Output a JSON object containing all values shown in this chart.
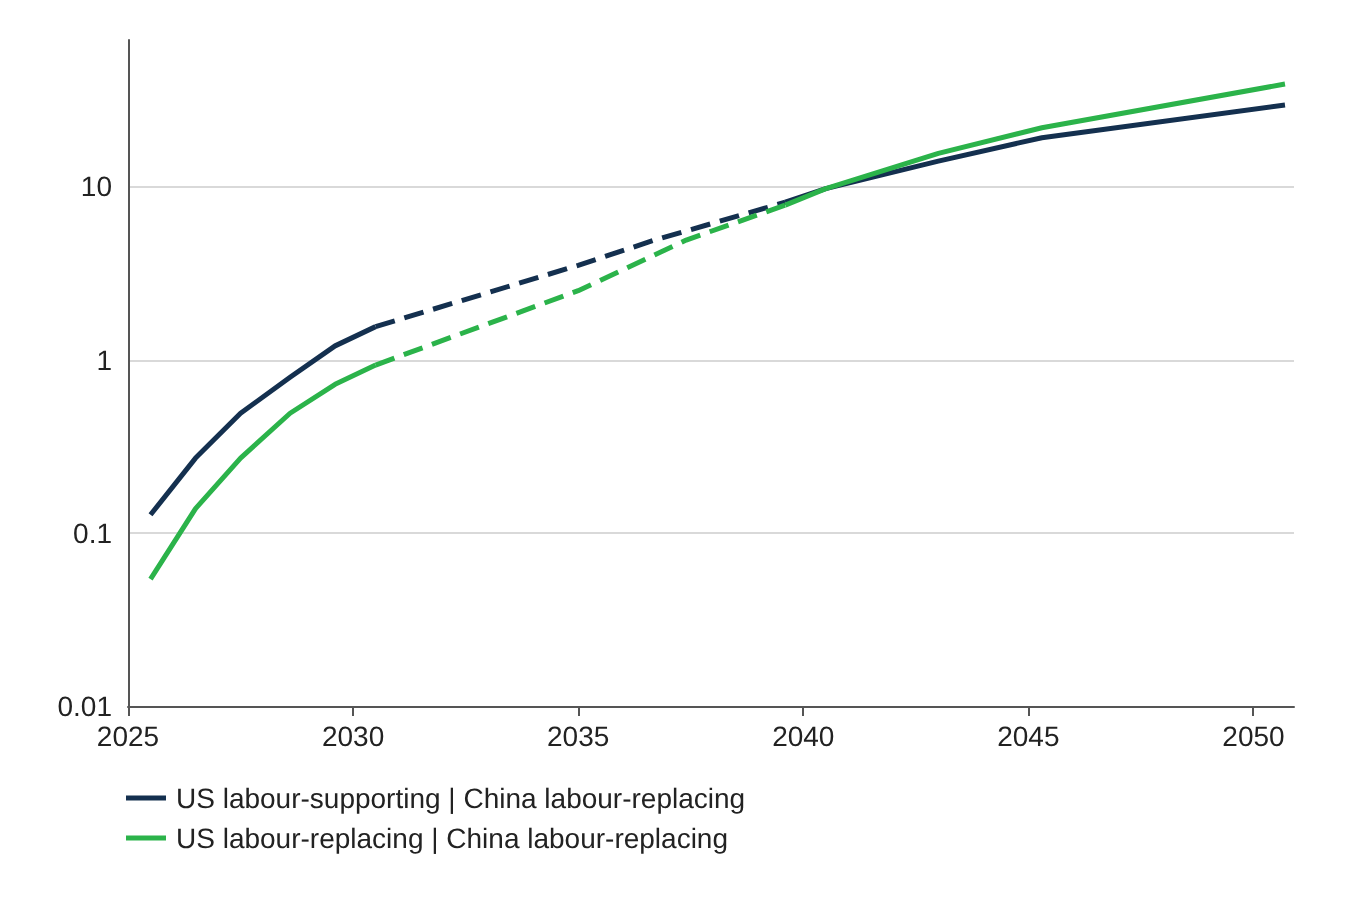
{
  "chart_data": {
    "type": "line",
    "log": "y",
    "grid": "y",
    "marker": "none",
    "legend": "bottom left",
    "xlim": [
      2025,
      2050.9
    ],
    "xticks": [
      2025,
      2030,
      2035,
      2040,
      2045,
      2050
    ],
    "ylim": [
      0.01,
      70
    ],
    "yticks": [
      0.01,
      0.1,
      1,
      10
    ],
    "series": [
      {
        "name": "US labour-supporting | China labour-replacing",
        "color": "#14304f",
        "line_style": "solid",
        "x": [
          2025.5,
          2026.5,
          2027.5,
          2028.6,
          2029.6,
          2030.5
        ],
        "values": [
          0.127,
          0.27,
          0.49,
          0.79,
          1.2,
          1.55
        ]
      },
      {
        "color": "#14304f",
        "line_style": "dashed",
        "x": [
          2030.5,
          2035,
          2036.7,
          2039.6
        ],
        "values": [
          1.55,
          3.5,
          4.9,
          8.1
        ]
      },
      {
        "color": "#14304f",
        "line_style": "solid",
        "x": [
          2039.6,
          2040.5,
          2043,
          2045.3,
          2050.7
        ],
        "values": [
          8.1,
          9.7,
          14,
          19.1,
          29.5
        ]
      },
      {
        "name": "US labour-replacing | China labour-replacing",
        "color": "#2bb34a",
        "line_style": "solid",
        "x": [
          2025.5,
          2026.5,
          2027.5,
          2028.6,
          2029.6,
          2030.5
        ],
        "values": [
          0.054,
          0.138,
          0.27,
          0.49,
          0.72,
          0.93
        ]
      },
      {
        "color": "#2bb34a",
        "line_style": "dashed",
        "x": [
          2030.5,
          2035,
          2037.4,
          2039.6
        ],
        "values": [
          0.93,
          2.5,
          4.9,
          7.8
        ]
      },
      {
        "color": "#2bb34a",
        "line_style": "solid",
        "x": [
          2039.6,
          2040.5,
          2043,
          2045.3,
          2050.7
        ],
        "values": [
          7.8,
          9.7,
          15.5,
          21.8,
          39
        ]
      }
    ]
  }
}
